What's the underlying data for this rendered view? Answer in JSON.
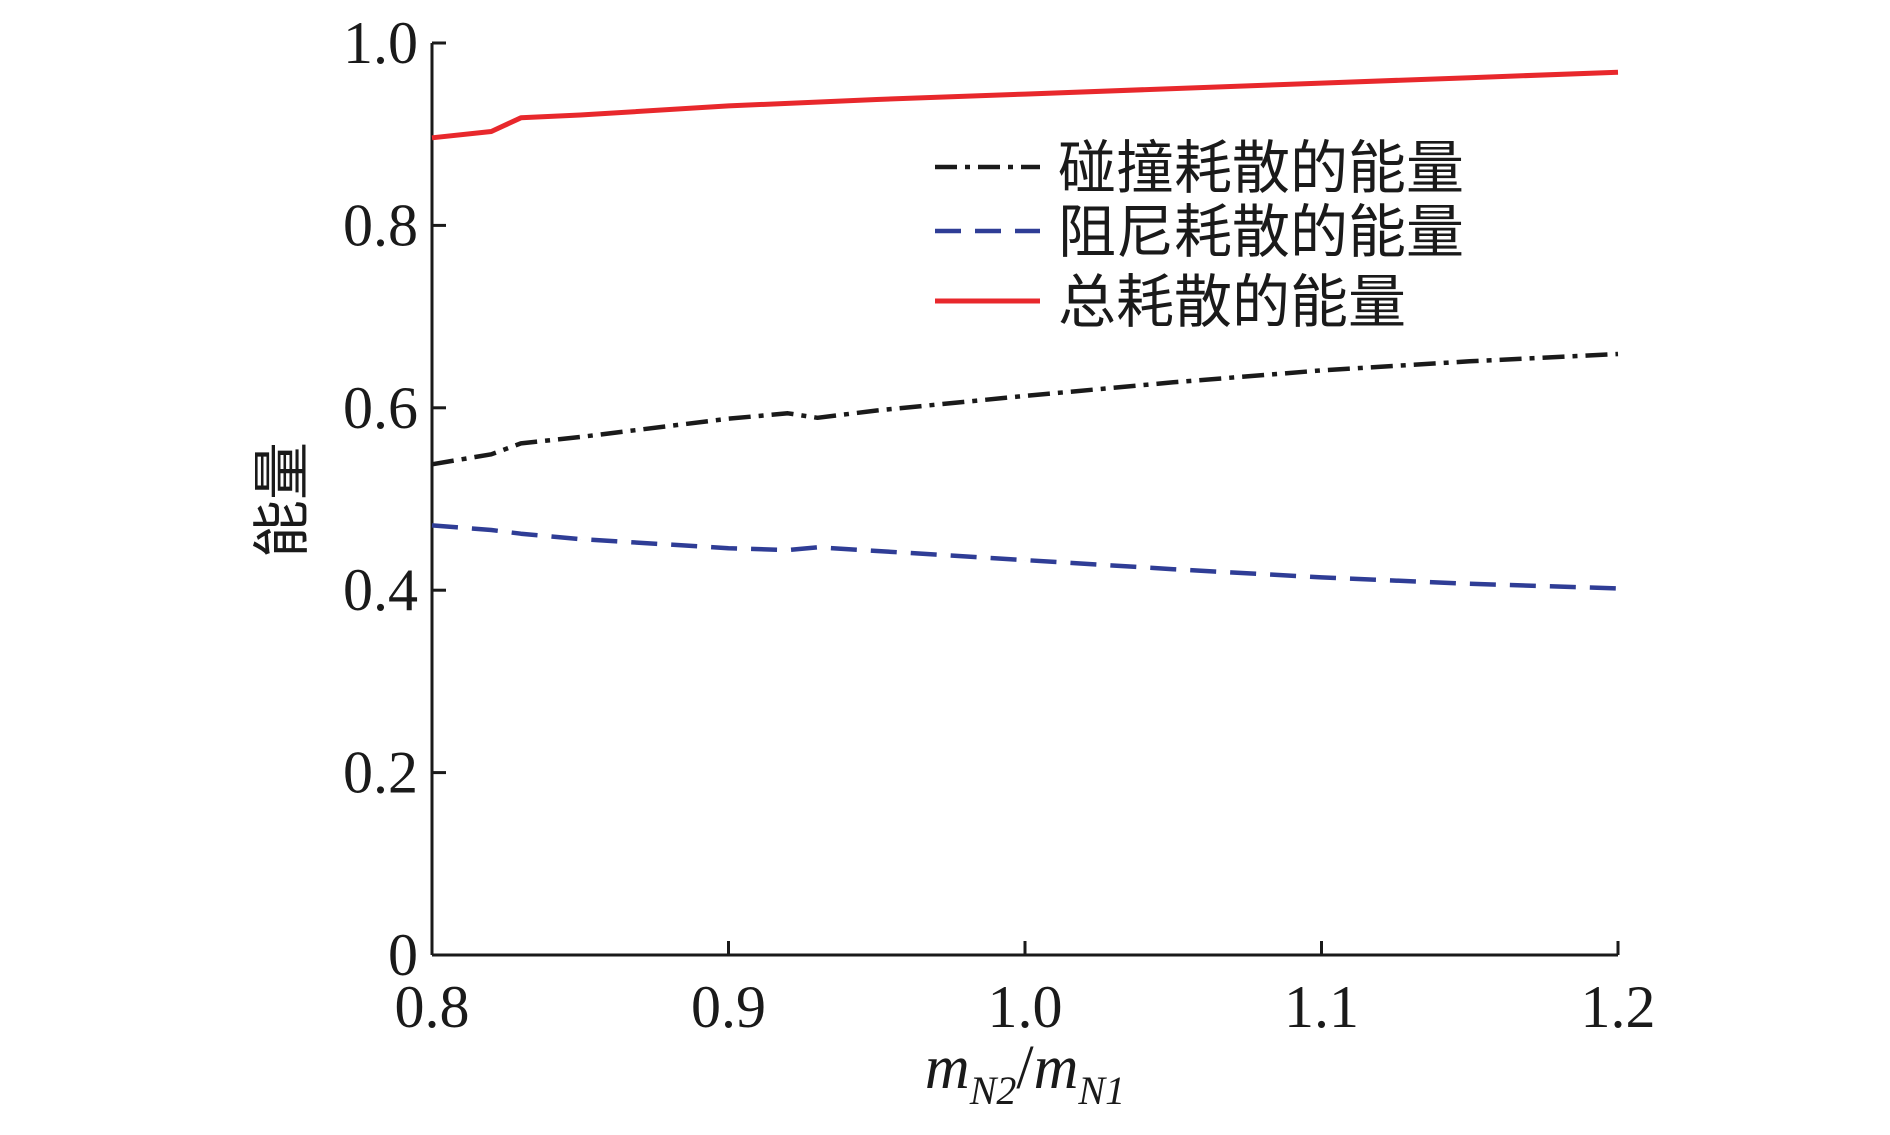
{
  "chart_data": {
    "type": "line",
    "title": "",
    "xlabel": {
      "parts": [
        {
          "text": "m",
          "role": "main"
        },
        {
          "text": "N2",
          "role": "sub"
        },
        {
          "text": "/",
          "role": "slash"
        },
        {
          "text": "m",
          "role": "main"
        },
        {
          "text": "N1",
          "role": "sub"
        }
      ]
    },
    "ylabel": "能量",
    "xlim": [
      0.8,
      1.2
    ],
    "ylim": [
      0,
      1.0
    ],
    "xticks": [
      0.8,
      0.9,
      1.0,
      1.1,
      1.2
    ],
    "xtick_labels": [
      "0.8",
      "0.9",
      "1.0",
      "1.1",
      "1.2"
    ],
    "yticks": [
      0,
      0.2,
      0.4,
      0.6,
      0.8,
      1.0
    ],
    "ytick_labels": [
      "0",
      "0.2",
      "0.4",
      "0.6",
      "0.8",
      "1.0"
    ],
    "grid": false,
    "legend_position": "top-right",
    "series": [
      {
        "name": "碰撞耗散的能量",
        "color": "#1a1a1a",
        "style": "dash-dot",
        "x": [
          0.8,
          0.82,
          0.83,
          0.85,
          0.88,
          0.9,
          0.92,
          0.93,
          0.95,
          1.0,
          1.05,
          1.1,
          1.15,
          1.2
        ],
        "values": [
          0.538,
          0.549,
          0.561,
          0.568,
          0.58,
          0.588,
          0.594,
          0.589,
          0.597,
          0.613,
          0.628,
          0.641,
          0.651,
          0.659
        ]
      },
      {
        "name": "阻尼耗散的能量",
        "color": "#2f3d96",
        "style": "dash",
        "x": [
          0.8,
          0.82,
          0.83,
          0.85,
          0.9,
          0.92,
          0.93,
          1.0,
          1.05,
          1.1,
          1.15,
          1.2
        ],
        "values": [
          0.471,
          0.466,
          0.462,
          0.456,
          0.446,
          0.444,
          0.447,
          0.433,
          0.423,
          0.414,
          0.407,
          0.402
        ]
      },
      {
        "name": "总耗散的能量",
        "color": "#e8282c",
        "style": "solid",
        "x": [
          0.8,
          0.82,
          0.83,
          0.85,
          0.9,
          0.95,
          1.0,
          1.05,
          1.1,
          1.15,
          1.2
        ],
        "values": [
          0.896,
          0.903,
          0.918,
          0.921,
          0.931,
          0.938,
          0.944,
          0.95,
          0.956,
          0.962,
          0.968
        ]
      }
    ]
  }
}
